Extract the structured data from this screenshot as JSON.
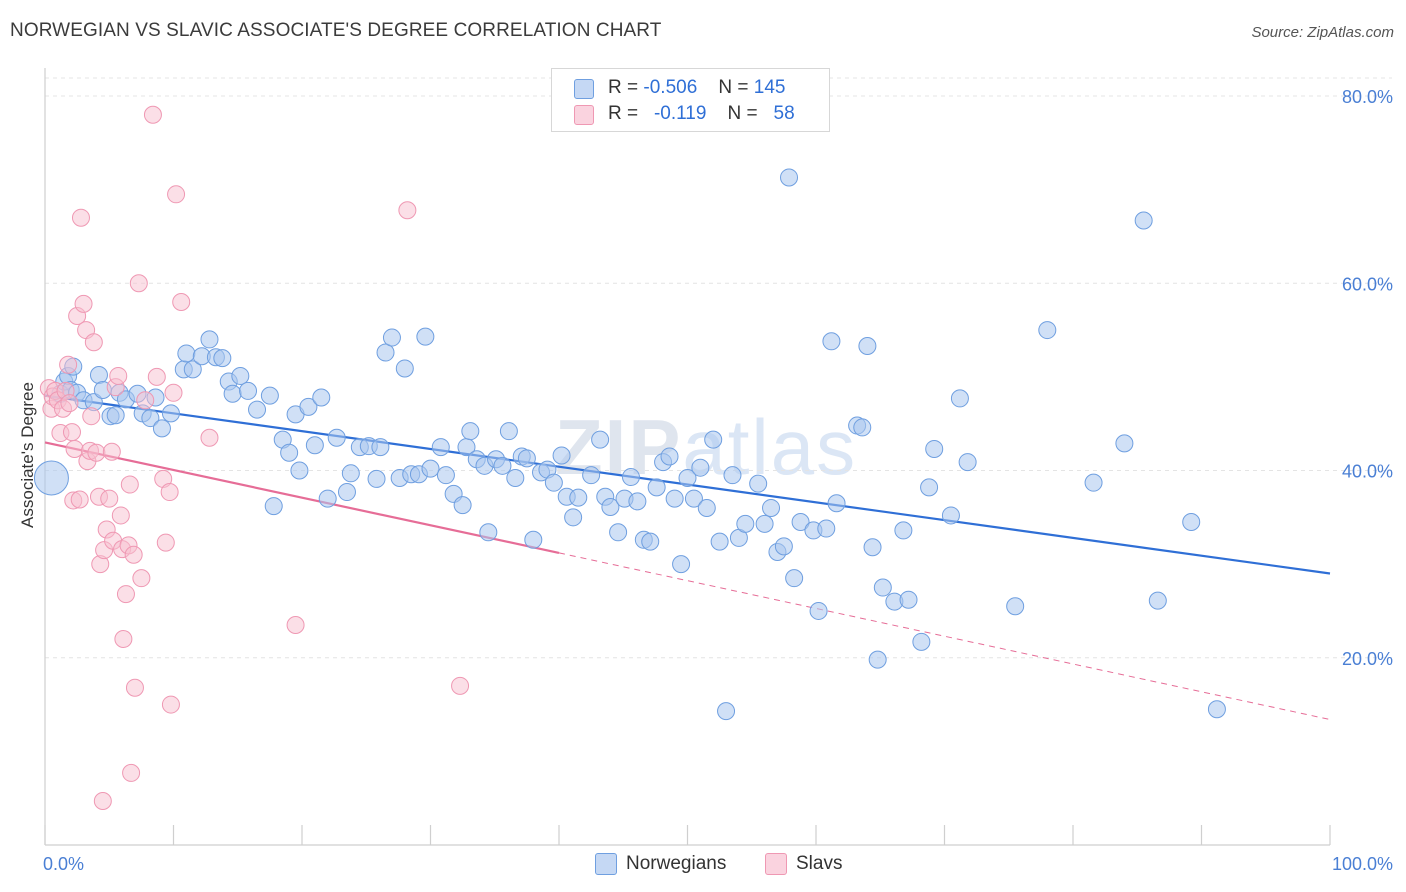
{
  "header": {
    "title": "NORWEGIAN VS SLAVIC ASSOCIATE'S DEGREE CORRELATION CHART",
    "source": "Source: ZipAtlas.com"
  },
  "watermark": {
    "zip": "ZIP",
    "atlas": "atlas"
  },
  "legend": {
    "norwegians": {
      "r_label": "R =",
      "r_value": "-0.506",
      "n_label": "N =",
      "n_value": "145"
    },
    "slavs": {
      "r_label": "R =",
      "r_value": "-0.119",
      "n_label": "N =",
      "n_value": "58"
    }
  },
  "bottom_legend": {
    "norwegians": "Norwegians",
    "slavs": "Slavs"
  },
  "colors": {
    "norwegians_fill": "#a9c6ef",
    "norwegians_stroke": "#6f9fe0",
    "norwegians_line": "#2f6fd6",
    "slavs_fill": "#f7bfcf",
    "slavs_stroke": "#ef98b3",
    "slavs_line": "#e66d97",
    "grid": "#e4e4e4",
    "tick_text": "#4a7fd4"
  },
  "chart_data": {
    "type": "scatter",
    "title": "NORWEGIAN VS SLAVIC ASSOCIATE'S DEGREE CORRELATION CHART",
    "xlabel": "",
    "ylabel": "Associate's Degree",
    "xlim": [
      0,
      100
    ],
    "ylim": [
      0,
      80
    ],
    "x_tick_labels": [
      "0.0%",
      "100.0%"
    ],
    "y_ticks": [
      20,
      40,
      60,
      80
    ],
    "y_tick_labels": [
      "20.0%",
      "40.0%",
      "60.0%",
      "80.0%"
    ],
    "series": [
      {
        "name": "Norwegians",
        "r": -0.506,
        "n": 145,
        "trend": {
          "x0": 0,
          "y0": 48,
          "x1": 100,
          "y1": 29.0
        },
        "points": [
          [
            0.5,
            39.2
          ],
          [
            1.2,
            48.2
          ],
          [
            1.5,
            49.5
          ],
          [
            1.8,
            50.1
          ],
          [
            2.0,
            48.6
          ],
          [
            2.2,
            51.1
          ],
          [
            2.5,
            48.3
          ],
          [
            3.0,
            47.5
          ],
          [
            3.8,
            47.3
          ],
          [
            4.2,
            50.2
          ],
          [
            4.5,
            48.6
          ],
          [
            5.1,
            45.8
          ],
          [
            5.5,
            45.9
          ],
          [
            5.8,
            48.3
          ],
          [
            6.3,
            47.6
          ],
          [
            7.2,
            48.2
          ],
          [
            7.6,
            46.1
          ],
          [
            8.2,
            45.6
          ],
          [
            8.6,
            47.8
          ],
          [
            9.1,
            44.5
          ],
          [
            9.8,
            46.1
          ],
          [
            10.8,
            50.8
          ],
          [
            11.0,
            52.5
          ],
          [
            11.5,
            50.8
          ],
          [
            12.2,
            52.2
          ],
          [
            12.8,
            54.0
          ],
          [
            13.3,
            52.1
          ],
          [
            13.8,
            52.0
          ],
          [
            14.3,
            49.5
          ],
          [
            14.6,
            48.2
          ],
          [
            15.2,
            50.1
          ],
          [
            15.8,
            48.5
          ],
          [
            16.5,
            46.5
          ],
          [
            17.5,
            48.0
          ],
          [
            17.8,
            36.2
          ],
          [
            18.5,
            43.3
          ],
          [
            19.0,
            41.9
          ],
          [
            19.5,
            46.0
          ],
          [
            19.8,
            40.0
          ],
          [
            20.5,
            46.8
          ],
          [
            21.0,
            42.7
          ],
          [
            21.5,
            47.8
          ],
          [
            22.0,
            37.0
          ],
          [
            22.7,
            43.5
          ],
          [
            23.5,
            37.7
          ],
          [
            23.8,
            39.7
          ],
          [
            24.5,
            42.5
          ],
          [
            25.2,
            42.6
          ],
          [
            25.8,
            39.1
          ],
          [
            26.1,
            42.5
          ],
          [
            26.5,
            52.6
          ],
          [
            27.0,
            54.2
          ],
          [
            27.6,
            39.2
          ],
          [
            28.0,
            50.9
          ],
          [
            28.5,
            39.6
          ],
          [
            29.1,
            39.6
          ],
          [
            29.6,
            54.3
          ],
          [
            30.0,
            40.2
          ],
          [
            30.8,
            42.5
          ],
          [
            31.2,
            39.5
          ],
          [
            31.8,
            37.5
          ],
          [
            32.5,
            36.3
          ],
          [
            32.8,
            42.5
          ],
          [
            33.1,
            44.2
          ],
          [
            33.6,
            41.2
          ],
          [
            34.2,
            40.5
          ],
          [
            34.5,
            33.4
          ],
          [
            35.1,
            41.2
          ],
          [
            35.6,
            40.5
          ],
          [
            36.1,
            44.2
          ],
          [
            36.6,
            39.2
          ],
          [
            37.1,
            41.5
          ],
          [
            37.5,
            41.3
          ],
          [
            38.0,
            32.6
          ],
          [
            38.6,
            39.8
          ],
          [
            39.1,
            40.1
          ],
          [
            39.6,
            38.7
          ],
          [
            40.2,
            41.6
          ],
          [
            40.6,
            37.2
          ],
          [
            41.1,
            35.0
          ],
          [
            41.5,
            37.1
          ],
          [
            42.5,
            39.5
          ],
          [
            43.2,
            43.3
          ],
          [
            43.6,
            37.2
          ],
          [
            44.0,
            36.1
          ],
          [
            44.6,
            33.4
          ],
          [
            45.1,
            37.0
          ],
          [
            45.6,
            39.3
          ],
          [
            46.1,
            36.7
          ],
          [
            46.6,
            32.6
          ],
          [
            47.1,
            32.4
          ],
          [
            47.6,
            38.2
          ],
          [
            48.1,
            40.9
          ],
          [
            48.6,
            41.5
          ],
          [
            49.0,
            37.0
          ],
          [
            49.5,
            30.0
          ],
          [
            50.0,
            39.2
          ],
          [
            50.5,
            37.0
          ],
          [
            51.0,
            40.3
          ],
          [
            51.5,
            36.0
          ],
          [
            52.0,
            43.3
          ],
          [
            52.5,
            32.4
          ],
          [
            53.0,
            14.3
          ],
          [
            53.5,
            39.5
          ],
          [
            54.0,
            32.8
          ],
          [
            54.5,
            34.3
          ],
          [
            55.5,
            38.6
          ],
          [
            56.0,
            34.3
          ],
          [
            56.5,
            36.0
          ],
          [
            57.0,
            31.3
          ],
          [
            57.5,
            31.9
          ],
          [
            57.9,
            71.3
          ],
          [
            58.3,
            28.5
          ],
          [
            58.8,
            34.5
          ],
          [
            59.8,
            33.6
          ],
          [
            60.2,
            25.0
          ],
          [
            60.8,
            33.8
          ],
          [
            61.2,
            53.8
          ],
          [
            61.6,
            36.5
          ],
          [
            63.2,
            44.8
          ],
          [
            63.6,
            44.6
          ],
          [
            64.0,
            53.3
          ],
          [
            64.4,
            31.8
          ],
          [
            64.8,
            19.8
          ],
          [
            65.2,
            27.5
          ],
          [
            66.1,
            26.0
          ],
          [
            66.8,
            33.6
          ],
          [
            67.2,
            26.2
          ],
          [
            68.2,
            21.7
          ],
          [
            68.8,
            38.2
          ],
          [
            69.2,
            42.3
          ],
          [
            70.5,
            35.2
          ],
          [
            71.2,
            47.7
          ],
          [
            71.8,
            40.9
          ],
          [
            75.5,
            25.5
          ],
          [
            78.0,
            55.0
          ],
          [
            81.6,
            38.7
          ],
          [
            84.0,
            42.9
          ],
          [
            85.5,
            66.7
          ],
          [
            86.6,
            26.1
          ],
          [
            89.2,
            34.5
          ],
          [
            91.2,
            14.5
          ]
        ]
      },
      {
        "name": "Slavs",
        "r": -0.119,
        "n": 58,
        "trend": {
          "x0": 0,
          "y0": 43.0,
          "x1": 40,
          "y1": 31.2,
          "dash_x1": 100,
          "dash_y1": 13.4
        },
        "points": [
          [
            0.3,
            48.8
          ],
          [
            0.5,
            46.6
          ],
          [
            0.6,
            47.9
          ],
          [
            0.8,
            48.5
          ],
          [
            1.0,
            47.5
          ],
          [
            1.2,
            44.0
          ],
          [
            1.4,
            46.6
          ],
          [
            1.6,
            48.5
          ],
          [
            1.8,
            51.3
          ],
          [
            1.9,
            47.2
          ],
          [
            2.1,
            44.1
          ],
          [
            2.2,
            36.8
          ],
          [
            2.3,
            42.3
          ],
          [
            2.5,
            56.5
          ],
          [
            2.7,
            36.9
          ],
          [
            2.8,
            67.0
          ],
          [
            3.0,
            57.8
          ],
          [
            3.2,
            55.0
          ],
          [
            3.3,
            41.0
          ],
          [
            3.5,
            42.1
          ],
          [
            3.6,
            45.8
          ],
          [
            3.8,
            53.7
          ],
          [
            4.0,
            41.9
          ],
          [
            4.2,
            37.2
          ],
          [
            4.3,
            30.0
          ],
          [
            4.5,
            4.7
          ],
          [
            4.6,
            31.5
          ],
          [
            4.8,
            33.7
          ],
          [
            5.0,
            37.0
          ],
          [
            5.2,
            42.0
          ],
          [
            5.3,
            32.5
          ],
          [
            5.5,
            48.9
          ],
          [
            5.7,
            50.1
          ],
          [
            5.9,
            35.2
          ],
          [
            6.0,
            31.6
          ],
          [
            6.1,
            22.0
          ],
          [
            6.3,
            26.8
          ],
          [
            6.5,
            32.0
          ],
          [
            6.6,
            38.5
          ],
          [
            6.7,
            7.7
          ],
          [
            6.9,
            31.0
          ],
          [
            7.0,
            16.8
          ],
          [
            7.3,
            60.0
          ],
          [
            7.5,
            28.5
          ],
          [
            7.8,
            47.5
          ],
          [
            8.4,
            78.0
          ],
          [
            8.7,
            50.0
          ],
          [
            9.2,
            39.1
          ],
          [
            9.4,
            32.3
          ],
          [
            9.7,
            37.7
          ],
          [
            9.8,
            15.0
          ],
          [
            10.0,
            48.3
          ],
          [
            10.2,
            69.5
          ],
          [
            10.6,
            58.0
          ],
          [
            12.8,
            43.5
          ],
          [
            19.5,
            23.5
          ],
          [
            28.2,
            67.8
          ],
          [
            32.3,
            17.0
          ]
        ]
      }
    ]
  }
}
